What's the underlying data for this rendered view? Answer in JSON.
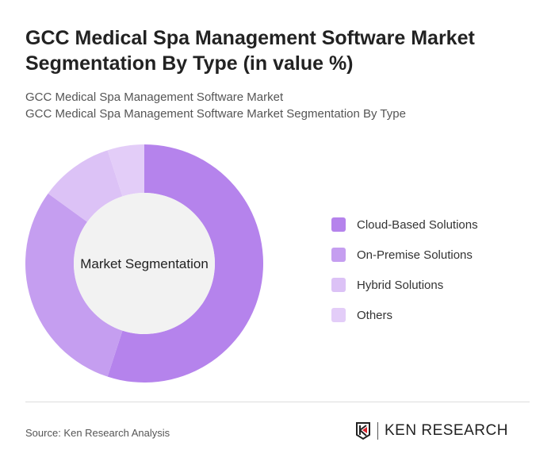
{
  "title": "GCC Medical Spa Management Software Market Segmentation By Type (in value %)",
  "subtitle1": "GCC Medical Spa Management Software Market",
  "subtitle2": "GCC Medical Spa Management Software Market Segmentation By Type",
  "source": "Source: Ken Research Analysis",
  "logo_text": "KEN RESEARCH",
  "chart_data": {
    "type": "pie",
    "variant": "donut",
    "center_label": "Market Segmentation",
    "categories": [
      "Cloud-Based Solutions",
      "On-Premise Solutions",
      "Hybrid Solutions",
      "Others"
    ],
    "values": [
      55,
      30,
      10,
      5
    ],
    "colors": [
      "#b583ec",
      "#c59ef0",
      "#dcc2f6",
      "#e3cdf8"
    ],
    "legend_position": "right"
  }
}
